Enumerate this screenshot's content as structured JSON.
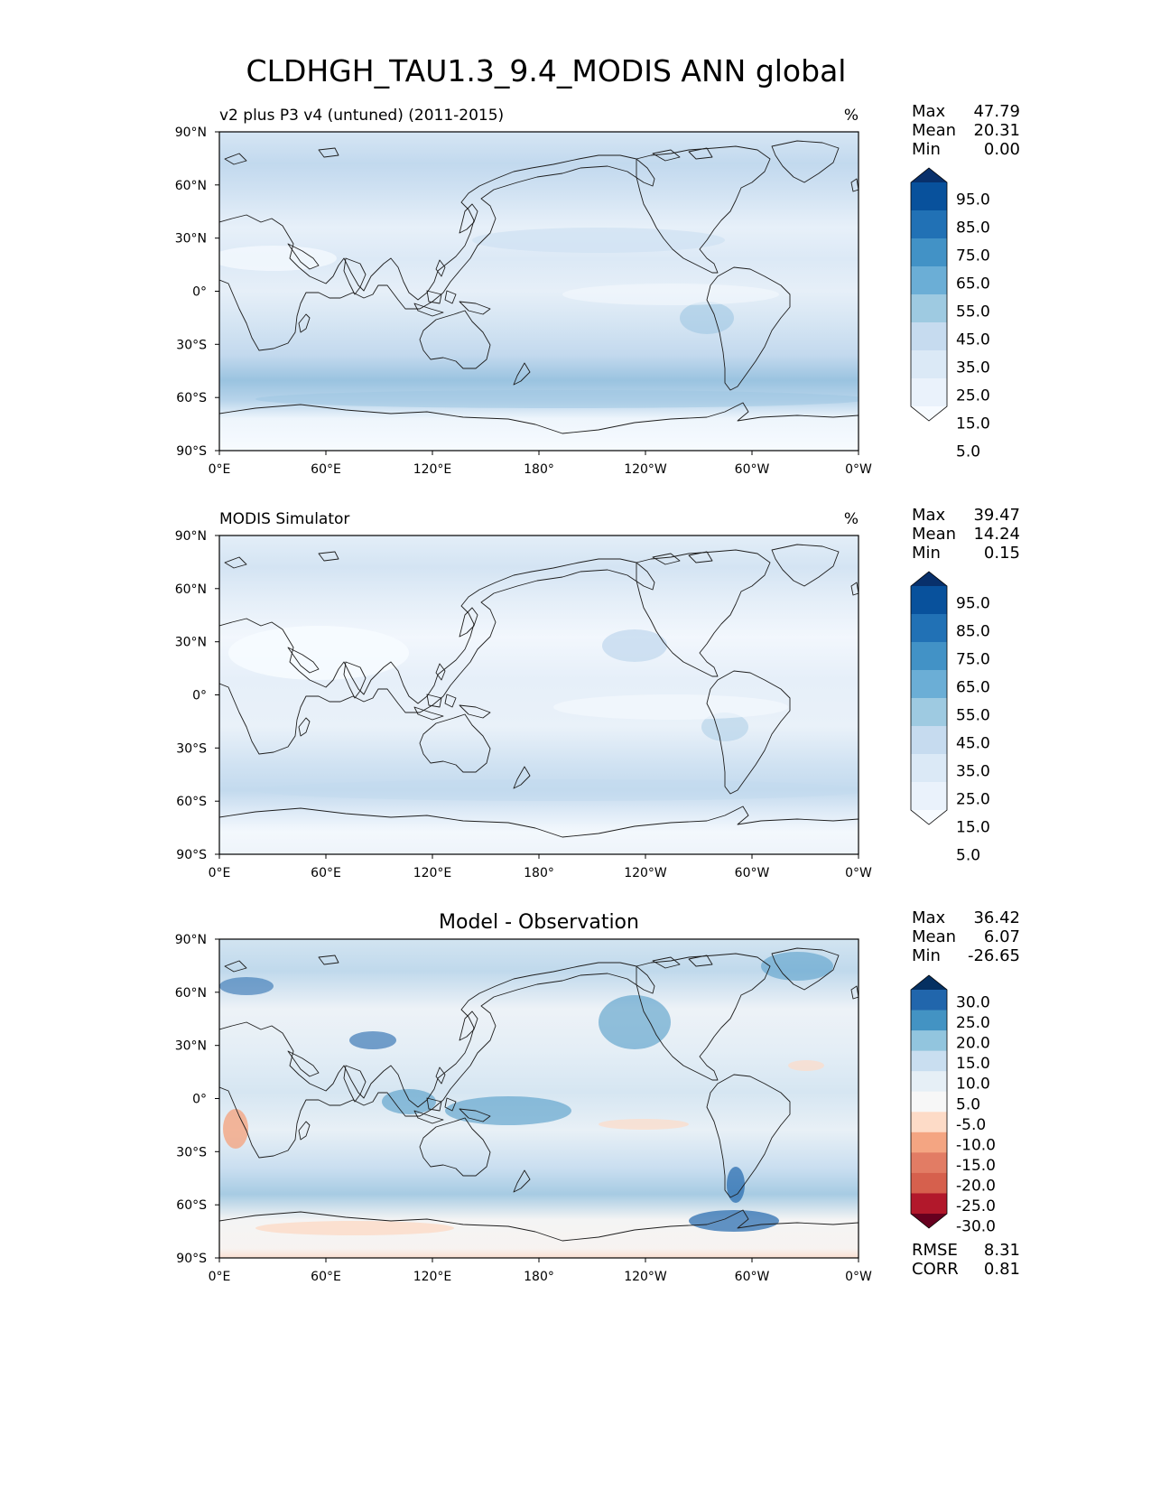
{
  "figure": {
    "title": "CLDHGH_TAU1.3_9.4_MODIS ANN global"
  },
  "axes": {
    "lat_ticks": [
      "90°N",
      "60°N",
      "30°N",
      "0°",
      "30°S",
      "60°S",
      "90°S"
    ],
    "lon_ticks": [
      "0°E",
      "60°E",
      "120°E",
      "180°",
      "120°W",
      "60°W",
      "0°W"
    ]
  },
  "stat_labels": {
    "max": "Max",
    "mean": "Mean",
    "min": "Min",
    "rmse": "RMSE",
    "corr": "CORR"
  },
  "chart_data": [
    {
      "type": "heatmap",
      "title": "v2 plus P3 v4 (untuned) (2011-2015)",
      "units": "%",
      "stats": {
        "max": "47.79",
        "mean": "20.31",
        "min": "0.00"
      },
      "colorbar": {
        "levels": [
          "95.0",
          "85.0",
          "75.0",
          "65.0",
          "55.0",
          "45.0",
          "35.0",
          "25.0",
          "15.0",
          "5.0"
        ],
        "colors": [
          "#08306b",
          "#08519c",
          "#2171b5",
          "#4292c6",
          "#6baed6",
          "#9ecae1",
          "#c6dbef",
          "#dbe9f6",
          "#eaf2fb",
          "#f7fbff"
        ]
      },
      "field": {
        "lat_bands": [
          "90N-60N",
          "60N-30N",
          "30N-0",
          "0-30S",
          "30S-60S",
          "60S-90S"
        ],
        "approx_percent": [
          28,
          22,
          20,
          22,
          32,
          8
        ]
      }
    },
    {
      "type": "heatmap",
      "title": "MODIS Simulator",
      "units": "%",
      "stats": {
        "max": "39.47",
        "mean": "14.24",
        "min": "0.15"
      },
      "colorbar": {
        "levels": [
          "95.0",
          "85.0",
          "75.0",
          "65.0",
          "55.0",
          "45.0",
          "35.0",
          "25.0",
          "15.0",
          "5.0"
        ],
        "colors": [
          "#08306b",
          "#08519c",
          "#2171b5",
          "#4292c6",
          "#6baed6",
          "#9ecae1",
          "#c6dbef",
          "#dbe9f6",
          "#eaf2fb",
          "#f7fbff"
        ]
      },
      "field": {
        "lat_bands": [
          "90N-60N",
          "60N-30N",
          "30N-0",
          "0-30S",
          "30S-60S",
          "60S-90S"
        ],
        "approx_percent": [
          18,
          14,
          14,
          15,
          24,
          6
        ]
      }
    },
    {
      "type": "heatmap",
      "title": "Model - Observation",
      "units": "",
      "stats": {
        "max": "36.42",
        "mean": "6.07",
        "min": "-26.65",
        "rmse": "8.31",
        "corr": "0.81"
      },
      "colorbar": {
        "levels": [
          "30.0",
          "25.0",
          "20.0",
          "15.0",
          "10.0",
          "5.0",
          "-5.0",
          "-10.0",
          "-15.0",
          "-20.0",
          "-25.0",
          "-30.0"
        ],
        "colors": [
          "#053061",
          "#2166ac",
          "#4393c3",
          "#92c5de",
          "#c9def0",
          "#e6eff6",
          "#f7f7f7",
          "#fddbc7",
          "#f4a582",
          "#e27c64",
          "#d6604d",
          "#b2182b",
          "#67001f"
        ]
      },
      "field": {
        "lat_bands": [
          "90N-60N",
          "60N-30N",
          "30N-0",
          "0-30S",
          "30S-60S",
          "60S-90S"
        ],
        "approx_diff": [
          10,
          6,
          6,
          5,
          10,
          -3
        ]
      }
    }
  ]
}
